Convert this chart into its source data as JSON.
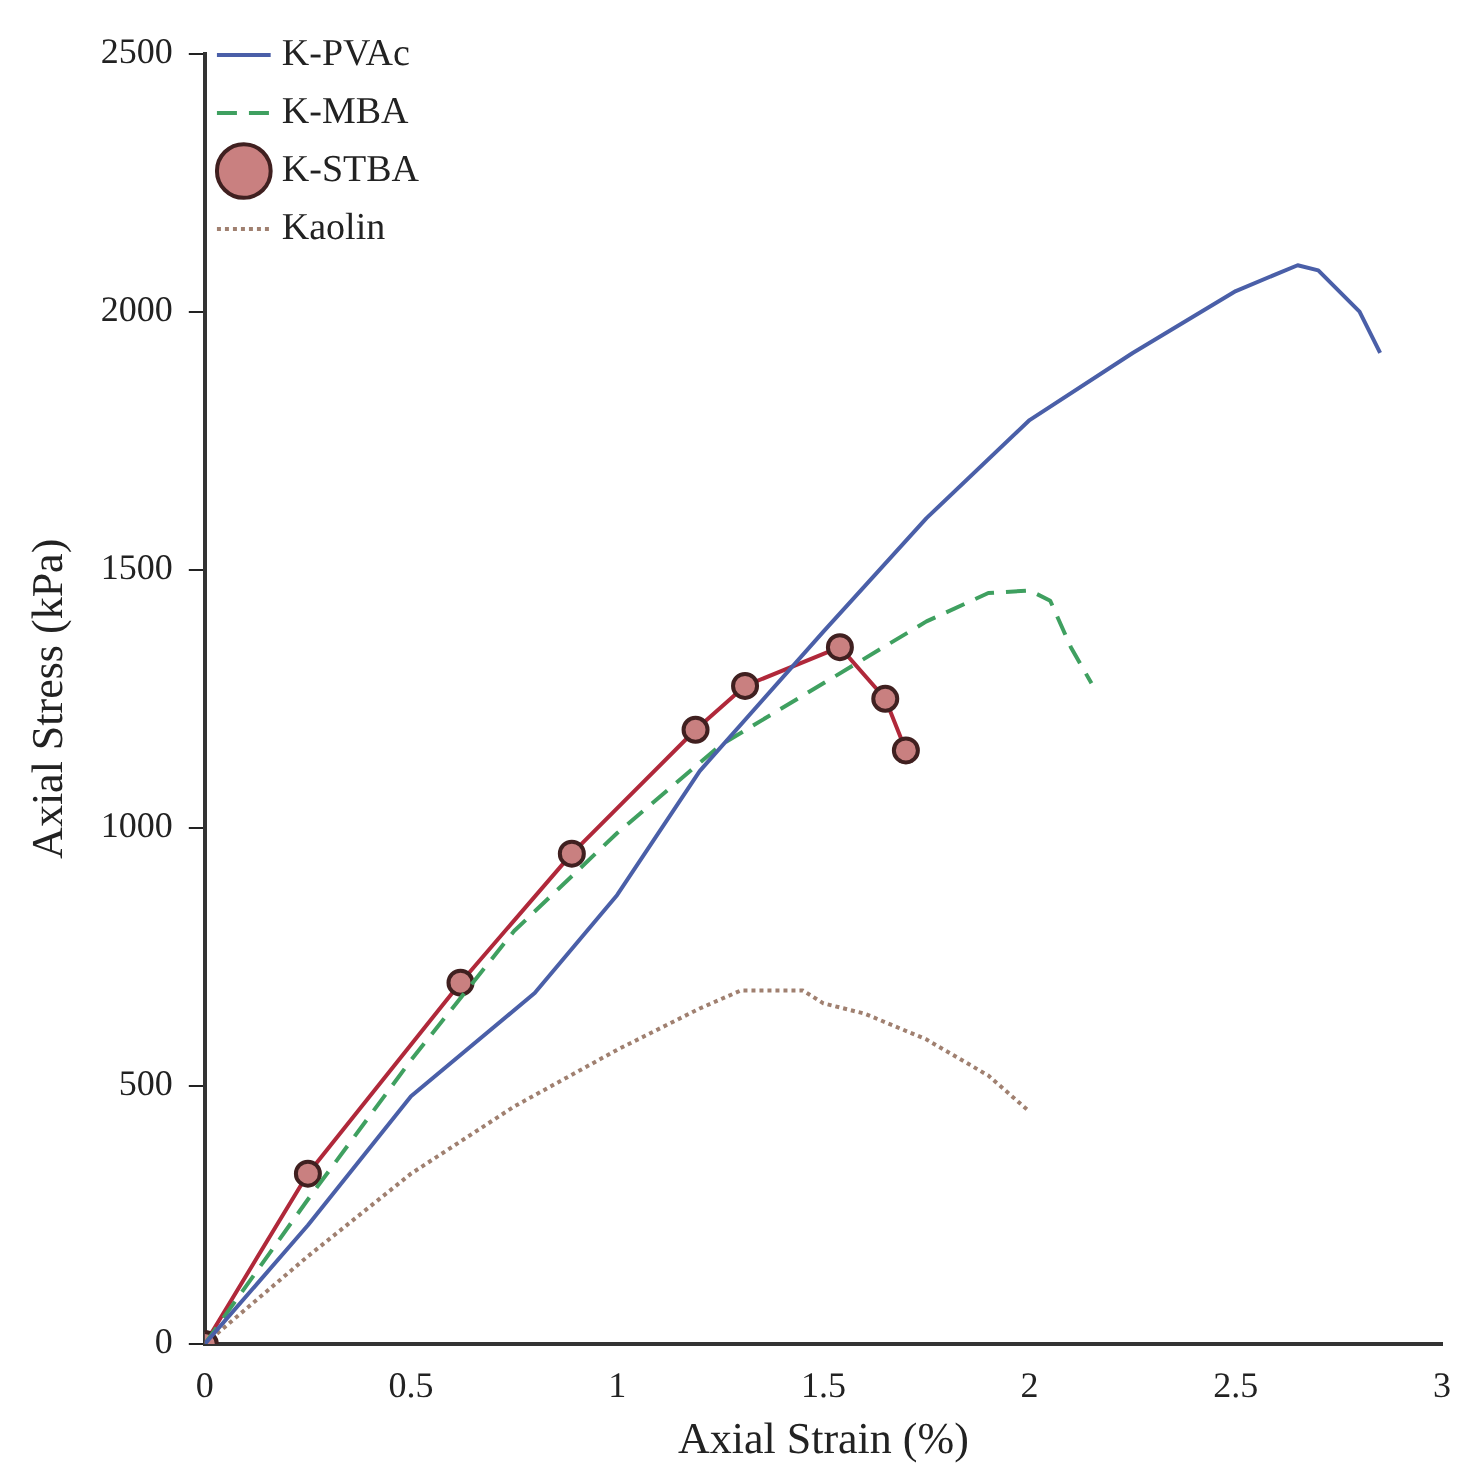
{
  "chart_data": {
    "type": "line",
    "xlabel": "Axial Strain (%)",
    "ylabel": "Axial Stress (kPa)",
    "xlim": [
      0,
      3
    ],
    "xticks": [
      0,
      0.5,
      1,
      1.5,
      2,
      2.5,
      3
    ],
    "ylim": [
      0,
      2500
    ],
    "yticks": [
      0,
      500,
      1000,
      1500,
      2000,
      2500
    ],
    "grid": false,
    "legend": "top left",
    "series": [
      {
        "name": "K-PVAc",
        "color": "#4a5fa8",
        "line_style": "solid",
        "marker": "none",
        "x": [
          0,
          0.25,
          0.5,
          0.8,
          1.0,
          1.2,
          1.5,
          1.75,
          2.0,
          2.25,
          2.5,
          2.65,
          2.7,
          2.8,
          2.85
        ],
        "values": [
          0,
          230,
          480,
          680,
          870,
          1110,
          1380,
          1600,
          1790,
          1920,
          2040,
          2090,
          2080,
          2000,
          1920
        ]
      },
      {
        "name": "K-MBA",
        "color": "#3fa060",
        "line_style": "dashed",
        "marker": "none",
        "x": [
          0,
          0.25,
          0.5,
          0.75,
          1.0,
          1.25,
          1.5,
          1.75,
          1.9,
          2.0,
          2.05,
          2.1,
          2.15
        ],
        "values": [
          0,
          280,
          550,
          800,
          990,
          1160,
          1280,
          1400,
          1455,
          1460,
          1440,
          1350,
          1280
        ]
      },
      {
        "name": "K-STBA",
        "color": "#b0283a",
        "line_style": "solid",
        "marker": "circle",
        "x": [
          0,
          0.25,
          0.62,
          0.89,
          1.19,
          1.31,
          1.54,
          1.65,
          1.7
        ],
        "values": [
          0,
          330,
          700,
          950,
          1190,
          1275,
          1350,
          1250,
          1150
        ]
      },
      {
        "name": "Kaolin",
        "color": "#a08070",
        "line_style": "dotted",
        "marker": "none",
        "x": [
          0,
          0.25,
          0.5,
          0.75,
          1.0,
          1.2,
          1.3,
          1.45,
          1.5,
          1.6,
          1.75,
          1.9,
          2.0
        ],
        "values": [
          0,
          170,
          330,
          460,
          570,
          650,
          685,
          685,
          660,
          640,
          590,
          520,
          450
        ]
      }
    ]
  }
}
